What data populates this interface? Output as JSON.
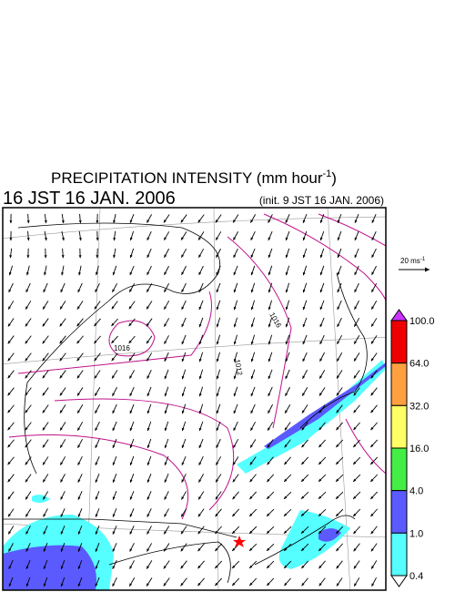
{
  "header": {
    "title": "PRECIPITATION INTENSITY (mm hour",
    "title_exponent": "-1",
    "title_close": ")",
    "valid_time": "16 JST 16 JAN. 2006",
    "init_time": "(init. 9 JST 16 JAN. 2006)"
  },
  "wind_scale": {
    "label": "20 ms",
    "exponent": "-1"
  },
  "isobars": [
    "1016",
    "1012",
    "1016"
  ],
  "colorbar": {
    "labels": [
      "100.0",
      "64.0",
      "32.0",
      "16.0",
      "4.0",
      "1.0",
      "0.4"
    ],
    "colors": [
      "#ee0000",
      "#ffa040",
      "#ffff66",
      "#44ee44",
      "#5a5aff",
      "#55ffff"
    ],
    "over_color": "#cc33ff",
    "under_color": "#ffffff"
  }
}
